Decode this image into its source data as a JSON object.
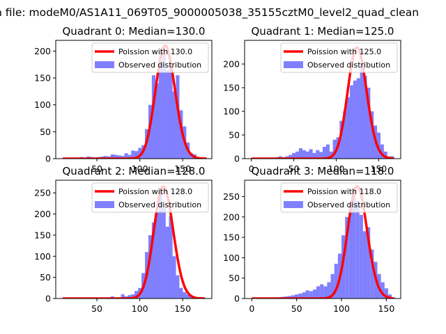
{
  "figure": {
    "suptitle": "n file: modeM0/AS1A11_069T05_9000005038_35155cztM0_level2_quad_clean"
  },
  "chart_data": [
    {
      "type": "bar",
      "title": "Quadrant 0: Median=130.0",
      "xlim": [
        2,
        184
      ],
      "ylim": [
        0,
        220
      ],
      "xticks": [
        50,
        100,
        150
      ],
      "yticks": [
        0,
        50,
        100,
        150,
        200
      ],
      "legend_position": "top-right",
      "series": [
        {
          "name": "Poission with 130.0",
          "kind": "line",
          "color": "#ff0000",
          "mean": 130.0,
          "peak": 210,
          "curve_range": [
            10,
            178
          ]
        },
        {
          "name": "Observed distribution",
          "kind": "histogram",
          "color": "#8080ff",
          "bin_width": 4.2,
          "x": [
            10,
            14,
            18,
            22,
            26,
            30,
            34,
            38,
            42,
            46,
            50,
            54,
            58,
            62,
            66,
            70,
            74,
            78,
            82,
            86,
            90,
            94,
            98,
            102,
            106,
            110,
            114,
            118,
            122,
            126,
            130,
            134,
            138,
            142,
            146,
            150,
            154,
            158,
            162,
            166,
            170,
            174,
            178
          ],
          "values": [
            0,
            0,
            0,
            0,
            2,
            3,
            2,
            4,
            3,
            2,
            3,
            4,
            5,
            4,
            8,
            7,
            6,
            5,
            10,
            7,
            15,
            14,
            20,
            25,
            55,
            100,
            155,
            140,
            175,
            195,
            165,
            170,
            125,
            155,
            90,
            60,
            30,
            10,
            8,
            2,
            0,
            0,
            0
          ]
        }
      ]
    },
    {
      "type": "bar",
      "title": "Quadrant 1: Median=125.0",
      "xlim": [
        -8,
        176
      ],
      "ylim": [
        0,
        250
      ],
      "xticks": [
        0,
        50,
        100,
        150
      ],
      "yticks": [
        0,
        50,
        100,
        150,
        200
      ],
      "legend_position": "top-right",
      "series": [
        {
          "name": "Poission with 125.0",
          "kind": "line",
          "color": "#ff0000",
          "mean": 125.0,
          "peak": 235,
          "curve_range": [
            0,
            168
          ]
        },
        {
          "name": "Observed distribution",
          "kind": "histogram",
          "color": "#8080ff",
          "bin_width": 4.2,
          "x": [
            0,
            4,
            8,
            12,
            16,
            20,
            24,
            28,
            32,
            36,
            40,
            44,
            48,
            52,
            56,
            60,
            64,
            68,
            72,
            76,
            80,
            84,
            88,
            92,
            96,
            100,
            104,
            108,
            112,
            116,
            120,
            124,
            128,
            132,
            136,
            140,
            144,
            148,
            152,
            156,
            160,
            164,
            168
          ],
          "values": [
            0,
            0,
            0,
            0,
            0,
            0,
            2,
            3,
            5,
            3,
            5,
            8,
            12,
            15,
            22,
            18,
            15,
            20,
            12,
            18,
            14,
            25,
            30,
            15,
            40,
            45,
            80,
            100,
            130,
            155,
            165,
            170,
            200,
            175,
            150,
            100,
            70,
            55,
            30,
            15,
            5,
            5,
            0
          ]
        }
      ]
    },
    {
      "type": "bar",
      "title": "Quadrant 2: Median=128.0",
      "xlim": [
        2,
        184
      ],
      "ylim": [
        0,
        280
      ],
      "xticks": [
        50,
        100,
        150
      ],
      "yticks": [
        0,
        50,
        100,
        150,
        200,
        250
      ],
      "legend_position": "top-right",
      "series": [
        {
          "name": "Poission with 128.0",
          "kind": "line",
          "color": "#ff0000",
          "mean": 128.0,
          "peak": 265,
          "curve_range": [
            10,
            176
          ]
        },
        {
          "name": "Observed distribution",
          "kind": "histogram",
          "color": "#8080ff",
          "bin_width": 4.2,
          "x": [
            10,
            14,
            18,
            22,
            26,
            30,
            34,
            38,
            42,
            46,
            50,
            54,
            58,
            62,
            66,
            70,
            74,
            78,
            82,
            86,
            90,
            94,
            98,
            102,
            106,
            110,
            114,
            118,
            122,
            126,
            130,
            134,
            138,
            142,
            146,
            150,
            154,
            158,
            162,
            166,
            170,
            174
          ],
          "values": [
            0,
            0,
            0,
            0,
            0,
            0,
            0,
            0,
            0,
            0,
            0,
            0,
            0,
            0,
            5,
            0,
            3,
            10,
            5,
            8,
            10,
            18,
            25,
            60,
            110,
            150,
            180,
            205,
            255,
            215,
            170,
            195,
            100,
            55,
            25,
            15,
            10,
            5,
            3,
            0,
            0,
            0
          ]
        }
      ]
    },
    {
      "type": "bar",
      "title": "Quadrant 3: Median=118.0",
      "xlim": [
        -8,
        166
      ],
      "ylim": [
        0,
        290
      ],
      "xticks": [
        0,
        50,
        100,
        150
      ],
      "yticks": [
        0,
        50,
        100,
        150,
        200,
        250
      ],
      "legend_position": "top-right",
      "series": [
        {
          "name": "Poission with 118.0",
          "kind": "line",
          "color": "#ff0000",
          "mean": 118.0,
          "peak": 275,
          "curve_range": [
            0,
            158
          ]
        },
        {
          "name": "Observed distribution",
          "kind": "histogram",
          "color": "#8080ff",
          "bin_width": 4.0,
          "x": [
            0,
            4,
            8,
            12,
            16,
            20,
            24,
            28,
            32,
            36,
            40,
            44,
            48,
            52,
            56,
            60,
            64,
            68,
            72,
            76,
            80,
            84,
            88,
            92,
            96,
            100,
            104,
            108,
            112,
            116,
            120,
            124,
            128,
            132,
            136,
            140,
            144,
            148,
            152,
            156
          ],
          "values": [
            0,
            0,
            0,
            0,
            0,
            0,
            2,
            3,
            4,
            5,
            6,
            8,
            10,
            12,
            15,
            20,
            18,
            22,
            30,
            35,
            30,
            40,
            60,
            85,
            110,
            155,
            200,
            230,
            260,
            240,
            205,
            165,
            175,
            120,
            90,
            60,
            40,
            25,
            10,
            3
          ]
        }
      ]
    }
  ]
}
